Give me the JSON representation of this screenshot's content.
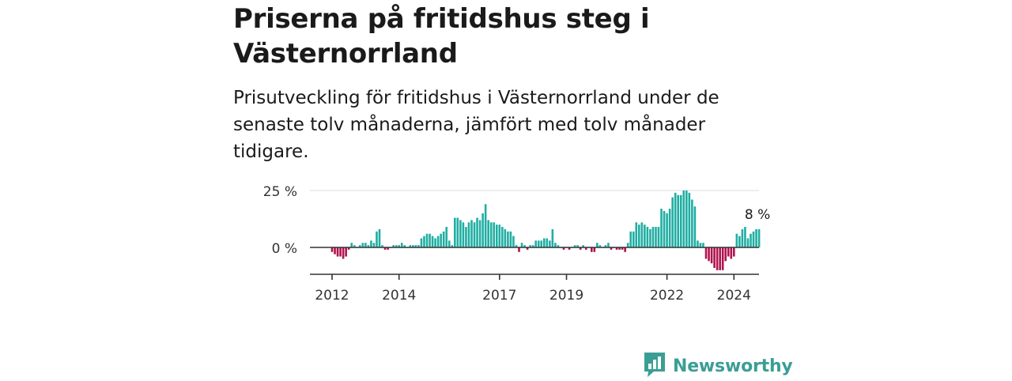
{
  "header": {
    "title": "Priserna på fritidshus steg i Västernorrland",
    "subtitle": "Prisutveckling för fritidshus i Västernorrland under de senaste tolv månaderna, jämfört med tolv månader tidigare."
  },
  "colors": {
    "positive": "#20aea3",
    "negative": "#b0134d",
    "grid": "#dddddd",
    "axis": "#333333",
    "brand": "#3a9e95"
  },
  "brand": {
    "name": "Newsworthy",
    "icon": "bar-chart-speech-bubble-icon"
  },
  "chart_data": {
    "type": "bar",
    "title": "Priserna på fritidshus steg i Västernorrland",
    "xlabel": "",
    "ylabel": "",
    "x_start": "2012-01",
    "frequency": "monthly",
    "xlim": [
      "2011-09",
      "2024-12"
    ],
    "ylim": [
      -12,
      25
    ],
    "y_ticks": [
      {
        "value": 25,
        "label": "25 %"
      },
      {
        "value": 0,
        "label": "0 %"
      }
    ],
    "x_ticks": [
      {
        "label": "2012",
        "index": 0
      },
      {
        "label": "2014",
        "index": 24
      },
      {
        "label": "2017",
        "index": 60
      },
      {
        "label": "2019",
        "index": 84
      },
      {
        "label": "2022",
        "index": 120
      },
      {
        "label": "2024",
        "index": 144
      }
    ],
    "last_value_label": "8 %",
    "grid": true,
    "values": [
      -2,
      -3,
      -4,
      -4,
      -5,
      -4,
      -1,
      2,
      1,
      0,
      1,
      2,
      2,
      1,
      3,
      2,
      7,
      8,
      1,
      -1,
      -1,
      0,
      1,
      1,
      1,
      2,
      1,
      0,
      1,
      1,
      1,
      1,
      4,
      5,
      6,
      6,
      5,
      4,
      5,
      6,
      7,
      9,
      3,
      1,
      13,
      13,
      12,
      11,
      9,
      11,
      12,
      11,
      13,
      12,
      15,
      19,
      12,
      11,
      11,
      10,
      10,
      9,
      8,
      7,
      7,
      5,
      1,
      -2,
      2,
      1,
      -1,
      1,
      1,
      3,
      3,
      3,
      4,
      4,
      3,
      8,
      2,
      1,
      0,
      -1,
      0,
      -1,
      0,
      1,
      1,
      -1,
      1,
      -1,
      0,
      -2,
      -2,
      2,
      1,
      0,
      1,
      2,
      -1,
      0,
      -1,
      -1,
      -1,
      -2,
      2,
      7,
      7,
      11,
      10,
      11,
      10,
      9,
      8,
      9,
      9,
      9,
      17,
      16,
      15,
      17,
      22,
      24,
      23,
      23,
      25,
      25,
      24,
      21,
      18,
      3,
      2,
      2,
      -5,
      -6,
      -7,
      -9,
      -10,
      -10,
      -10,
      -6,
      -4,
      -5,
      -4,
      6,
      5,
      8,
      9,
      4,
      6,
      7,
      8,
      8
    ]
  }
}
